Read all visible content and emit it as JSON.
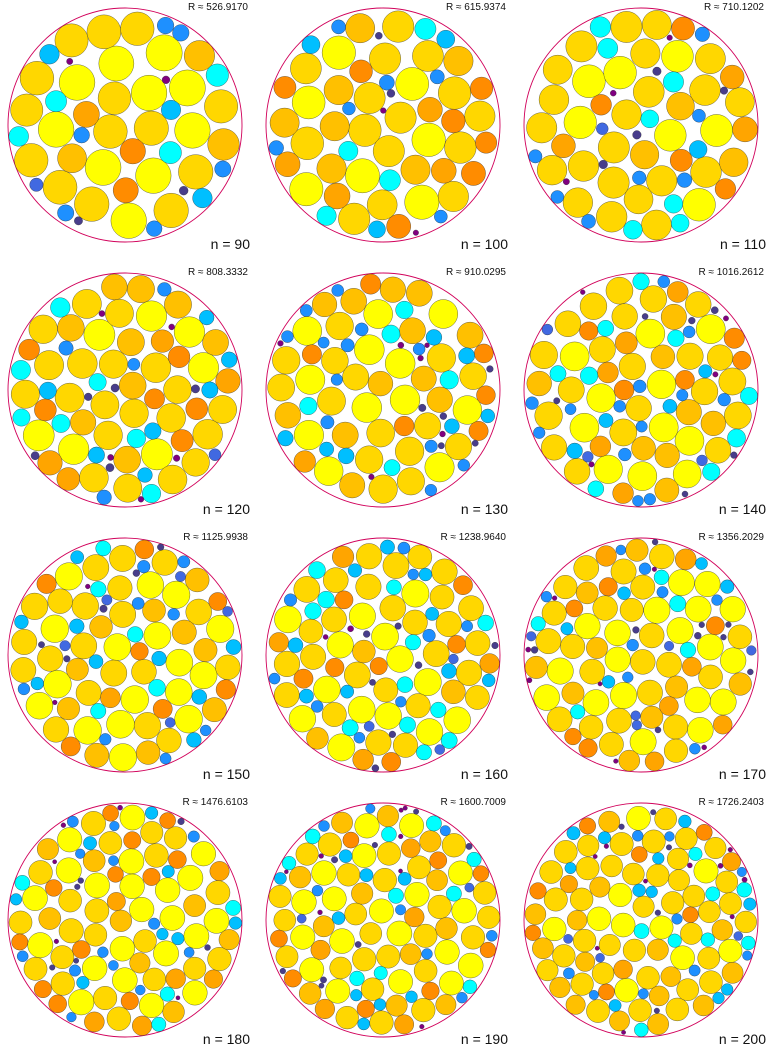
{
  "figure": {
    "description_free": true,
    "colors": {
      "boundary": "#d1005a",
      "edge": "#2b2b2b",
      "palette": [
        "#ffff00",
        "#ffd700",
        "#ffc000",
        "#ffa500",
        "#ff8c00",
        "#00ffff",
        "#00bfff",
        "#1e90ff",
        "#4169e1",
        "#483d8b",
        "#800080"
      ]
    },
    "panels": [
      {
        "n": 90,
        "n_label": "n = 90",
        "R": 526.917,
        "R_label": "R ≈ 526.9170"
      },
      {
        "n": 100,
        "n_label": "n = 100",
        "R": 615.9374,
        "R_label": "R ≈ 615.9374"
      },
      {
        "n": 110,
        "n_label": "n = 110",
        "R": 710.1202,
        "R_label": "R ≈ 710.1202"
      },
      {
        "n": 120,
        "n_label": "n = 120",
        "R": 808.3332,
        "R_label": "R ≈ 808.3332"
      },
      {
        "n": 130,
        "n_label": "n = 130",
        "R": 910.0295,
        "R_label": "R ≈ 910.0295"
      },
      {
        "n": 140,
        "n_label": "n = 140",
        "R": 1016.2612,
        "R_label": "R ≈ 1016.2612"
      },
      {
        "n": 150,
        "n_label": "n = 150",
        "R": 1125.9938,
        "R_label": "R ≈ 1125.9938"
      },
      {
        "n": 160,
        "n_label": "n = 160",
        "R": 1238.964,
        "R_label": "R ≈ 1238.9640"
      },
      {
        "n": 170,
        "n_label": "n = 170",
        "R": 1356.2029,
        "R_label": "R ≈ 1356.2029"
      },
      {
        "n": 180,
        "n_label": "n = 180",
        "R": 1476.6103,
        "R_label": "R ≈ 1476.6103"
      },
      {
        "n": 190,
        "n_label": "n = 190",
        "R": 1600.7009,
        "R_label": "R ≈ 1600.7009"
      },
      {
        "n": 200,
        "n_label": "n = 200",
        "R": 1726.2403,
        "R_label": "R ≈ 1726.2403"
      }
    ]
  }
}
